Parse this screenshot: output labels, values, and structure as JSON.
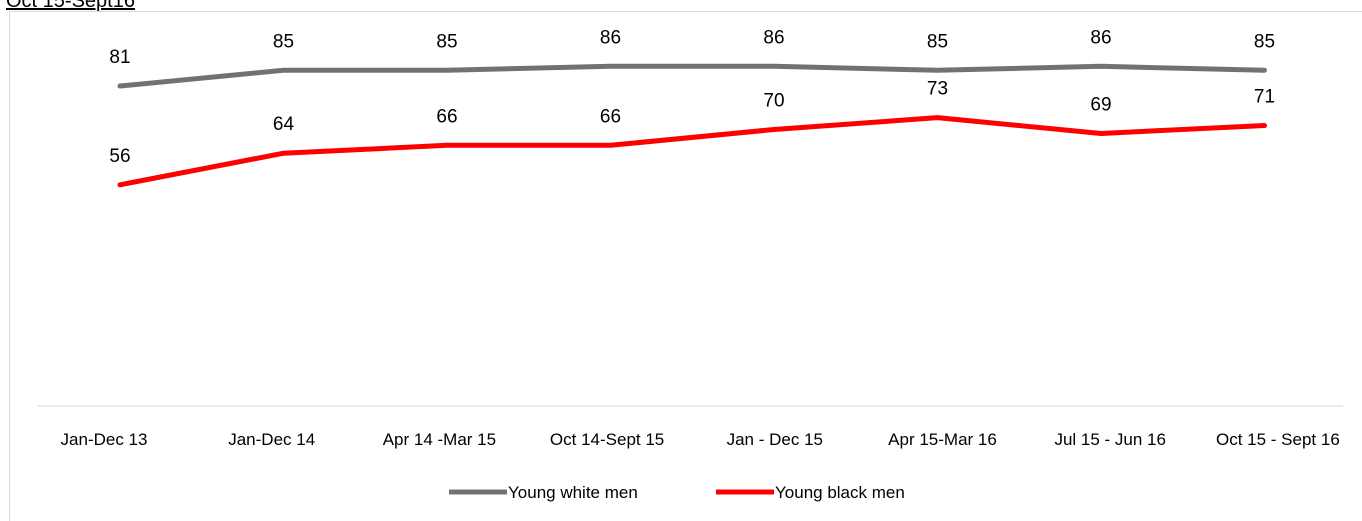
{
  "heading": "Oct 15-Sept16",
  "chart_data": {
    "type": "line",
    "categories": [
      "Jan-Dec 13",
      "Jan-Dec 14",
      "Apr 14 -Mar 15",
      "Oct 14-Sept 15",
      "Jan - Dec 15",
      "Apr 15-Mar 16",
      "Jul 15 - Jun 16",
      "Oct 15 - Sept 16"
    ],
    "series": [
      {
        "name": "Young white men",
        "values": [
          81,
          85,
          85,
          86,
          86,
          85,
          86,
          85
        ],
        "color": "#767171"
      },
      {
        "name": "Young black men",
        "values": [
          56,
          64,
          66,
          66,
          70,
          73,
          69,
          71
        ],
        "color": "#ff0000"
      }
    ],
    "data_labels": true,
    "legend_position": "bottom",
    "grid": false,
    "ylim": [
      0,
      100
    ]
  }
}
